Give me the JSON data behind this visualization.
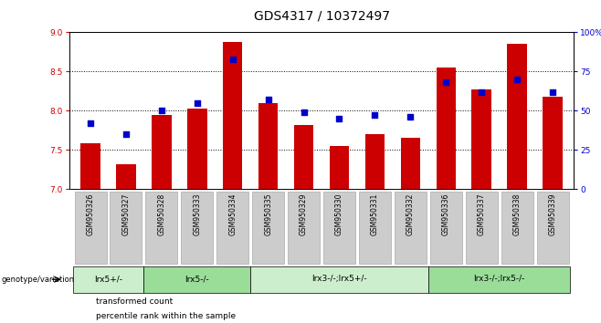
{
  "title": "GDS4317 / 10372497",
  "samples": [
    "GSM950326",
    "GSM950327",
    "GSM950328",
    "GSM950333",
    "GSM950334",
    "GSM950335",
    "GSM950329",
    "GSM950330",
    "GSM950331",
    "GSM950332",
    "GSM950336",
    "GSM950337",
    "GSM950338",
    "GSM950339"
  ],
  "bar_values": [
    7.58,
    7.32,
    7.95,
    8.03,
    8.88,
    8.1,
    7.82,
    7.55,
    7.7,
    7.65,
    8.55,
    8.27,
    8.85,
    8.18
  ],
  "percentile_values": [
    42,
    35,
    50,
    55,
    83,
    57,
    49,
    45,
    47,
    46,
    68,
    62,
    70,
    62
  ],
  "ylim_left": [
    7,
    9
  ],
  "ylim_right": [
    0,
    100
  ],
  "yticks_left": [
    7,
    7.5,
    8,
    8.5,
    9
  ],
  "yticks_right": [
    0,
    25,
    50,
    75,
    100
  ],
  "bar_color": "#cc0000",
  "dot_color": "#0000cc",
  "bar_bottom": 7,
  "groups": [
    {
      "label": "lrx5+/-",
      "start": 0,
      "end": 2,
      "color": "#cceecc"
    },
    {
      "label": "lrx5-/-",
      "start": 2,
      "end": 5,
      "color": "#99dd99"
    },
    {
      "label": "lrx3-/-;lrx5+/-",
      "start": 5,
      "end": 10,
      "color": "#cceecc"
    },
    {
      "label": "lrx3-/-;lrx5-/-",
      "start": 10,
      "end": 14,
      "color": "#99dd99"
    }
  ],
  "group_label": "genotype/variation",
  "legend_bar_label": "transformed count",
  "legend_dot_label": "percentile rank within the sample",
  "background_color": "#ffffff",
  "title_fontsize": 10,
  "tick_fontsize": 6.5,
  "axis_color_left": "#cc0000",
  "axis_color_right": "#0000cc",
  "sample_box_color": "#cccccc",
  "sample_box_edge": "#aaaaaa"
}
